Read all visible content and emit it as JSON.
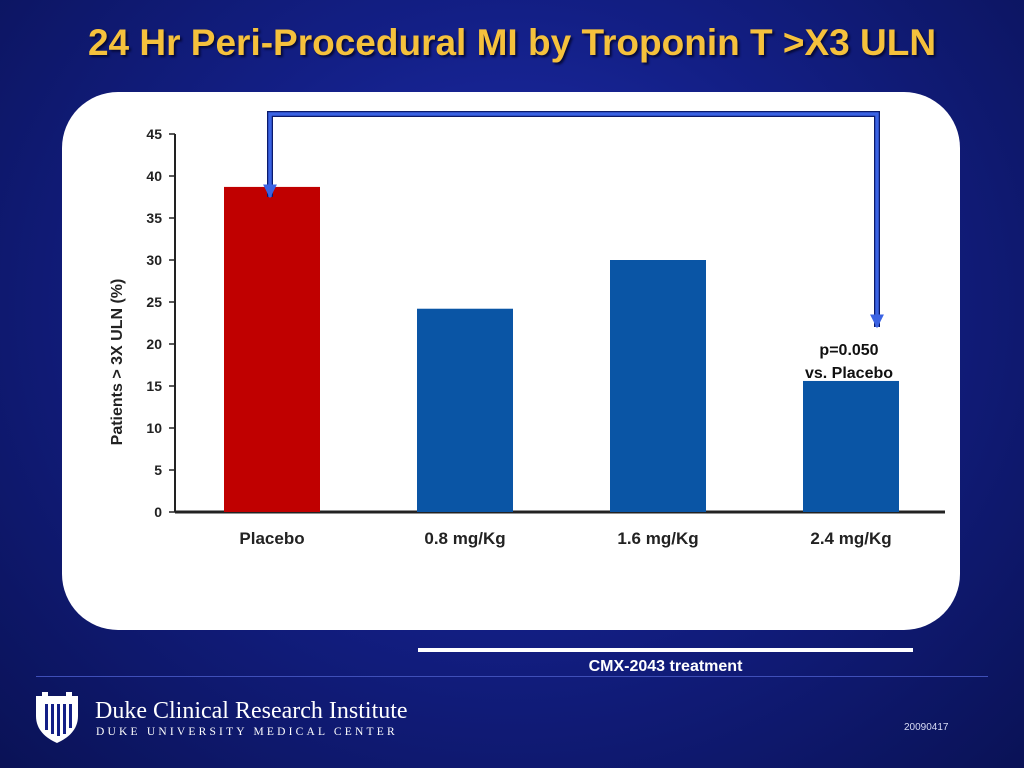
{
  "slide": {
    "title": "24 Hr Peri-Procedural MI by Troponin T >X3 ULN",
    "treatment_label": "CMX-2043 treatment",
    "code": "20090417"
  },
  "footer": {
    "institute_name": "Duke Clinical Research Institute",
    "institute_sub": "DUKE UNIVERSITY MEDICAL CENTER"
  },
  "colors": {
    "placebo_bar": "#c00000",
    "treatment_bar": "#0a55a5",
    "arrow": "#3b63e3"
  },
  "chart_data": {
    "type": "bar",
    "categories": [
      "Placebo",
      "0.8 mg/Kg",
      "1.6 mg/Kg",
      "2.4 mg/Kg"
    ],
    "values": [
      38.7,
      24.2,
      30,
      15.6
    ],
    "ylabel": "Patients > 3X ULN (%)",
    "xlabel": "",
    "ylim": [
      0,
      45
    ],
    "yticks": [
      0,
      5,
      10,
      15,
      20,
      25,
      30,
      35,
      40,
      45
    ],
    "grid": false,
    "annotation": {
      "lines": [
        "p=0.050",
        "vs. Placebo"
      ],
      "compares": [
        "Placebo",
        "2.4 mg/Kg"
      ]
    }
  }
}
